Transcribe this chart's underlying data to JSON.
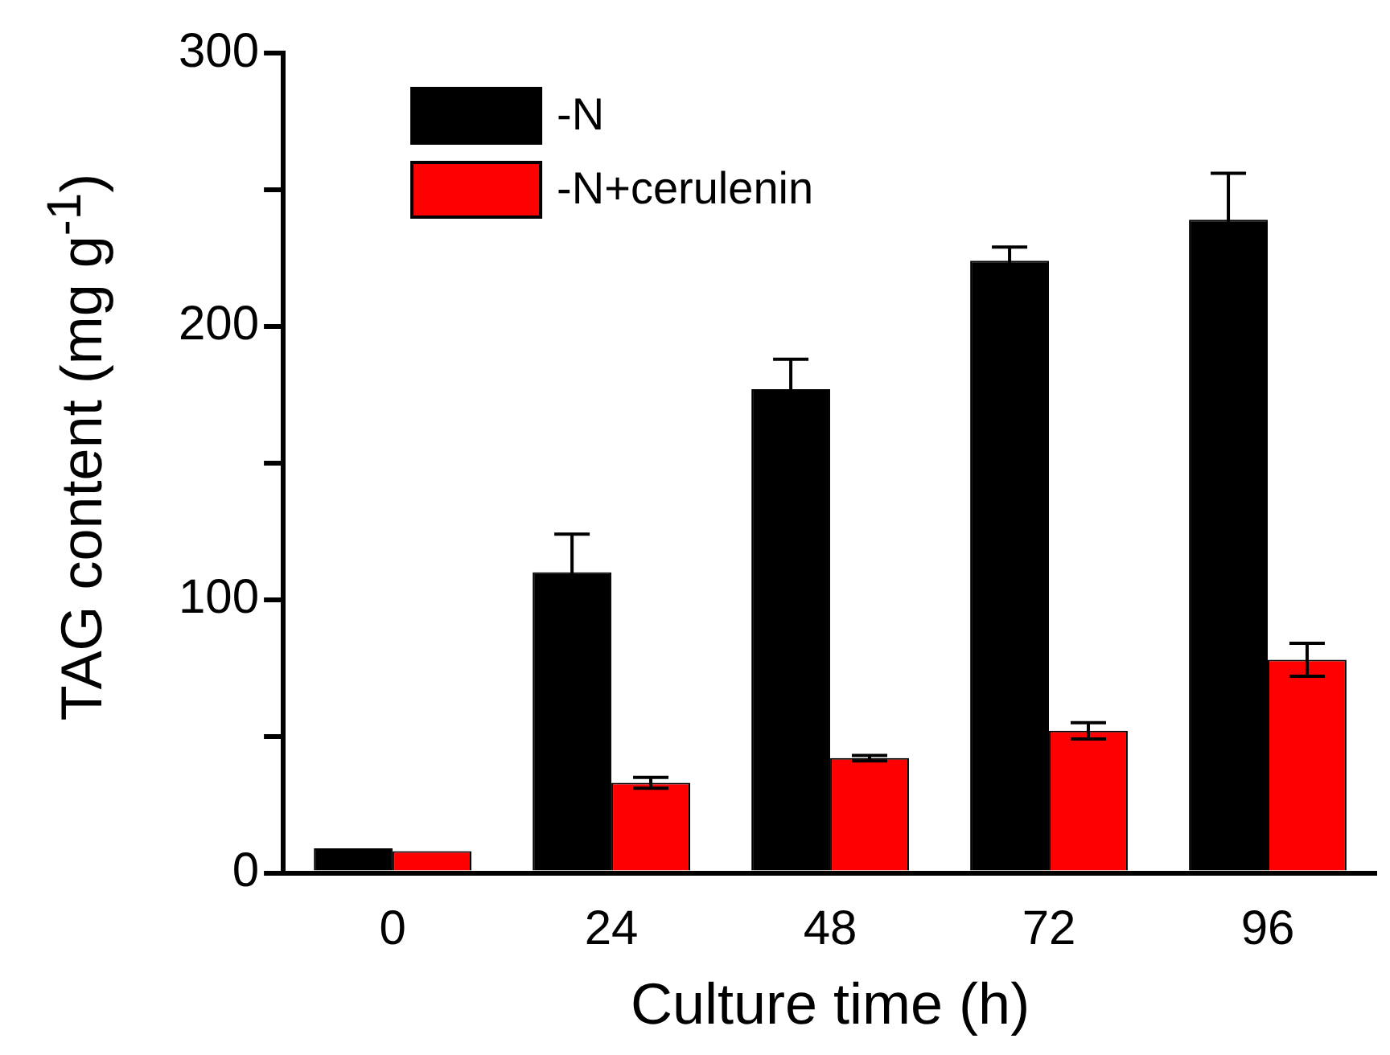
{
  "chart_data": {
    "type": "bar",
    "xlabel": "Culture time (h)",
    "ylabel": "TAG content (mg g$^{-1}$)",
    "categories": [
      "0",
      "24",
      "48",
      "72",
      "96"
    ],
    "series": [
      {
        "name": "-N",
        "color": "#000000",
        "values": [
          9,
          110,
          177,
          224,
          239
        ],
        "errors": [
          null,
          14,
          11,
          5,
          17
        ]
      },
      {
        "name": "-N+cerulenin",
        "color": "#ff0000",
        "values": [
          8,
          33,
          42,
          52,
          78
        ],
        "errors": [
          null,
          2,
          1,
          3,
          6
        ]
      }
    ],
    "ylim": [
      0,
      300
    ],
    "yticks": [
      0,
      {
        "value": 50,
        "label": null
      },
      100,
      {
        "value": 150,
        "label": null
      },
      200,
      {
        "value": 250,
        "label": null
      },
      300
    ],
    "grid": false,
    "legend": "top left"
  }
}
